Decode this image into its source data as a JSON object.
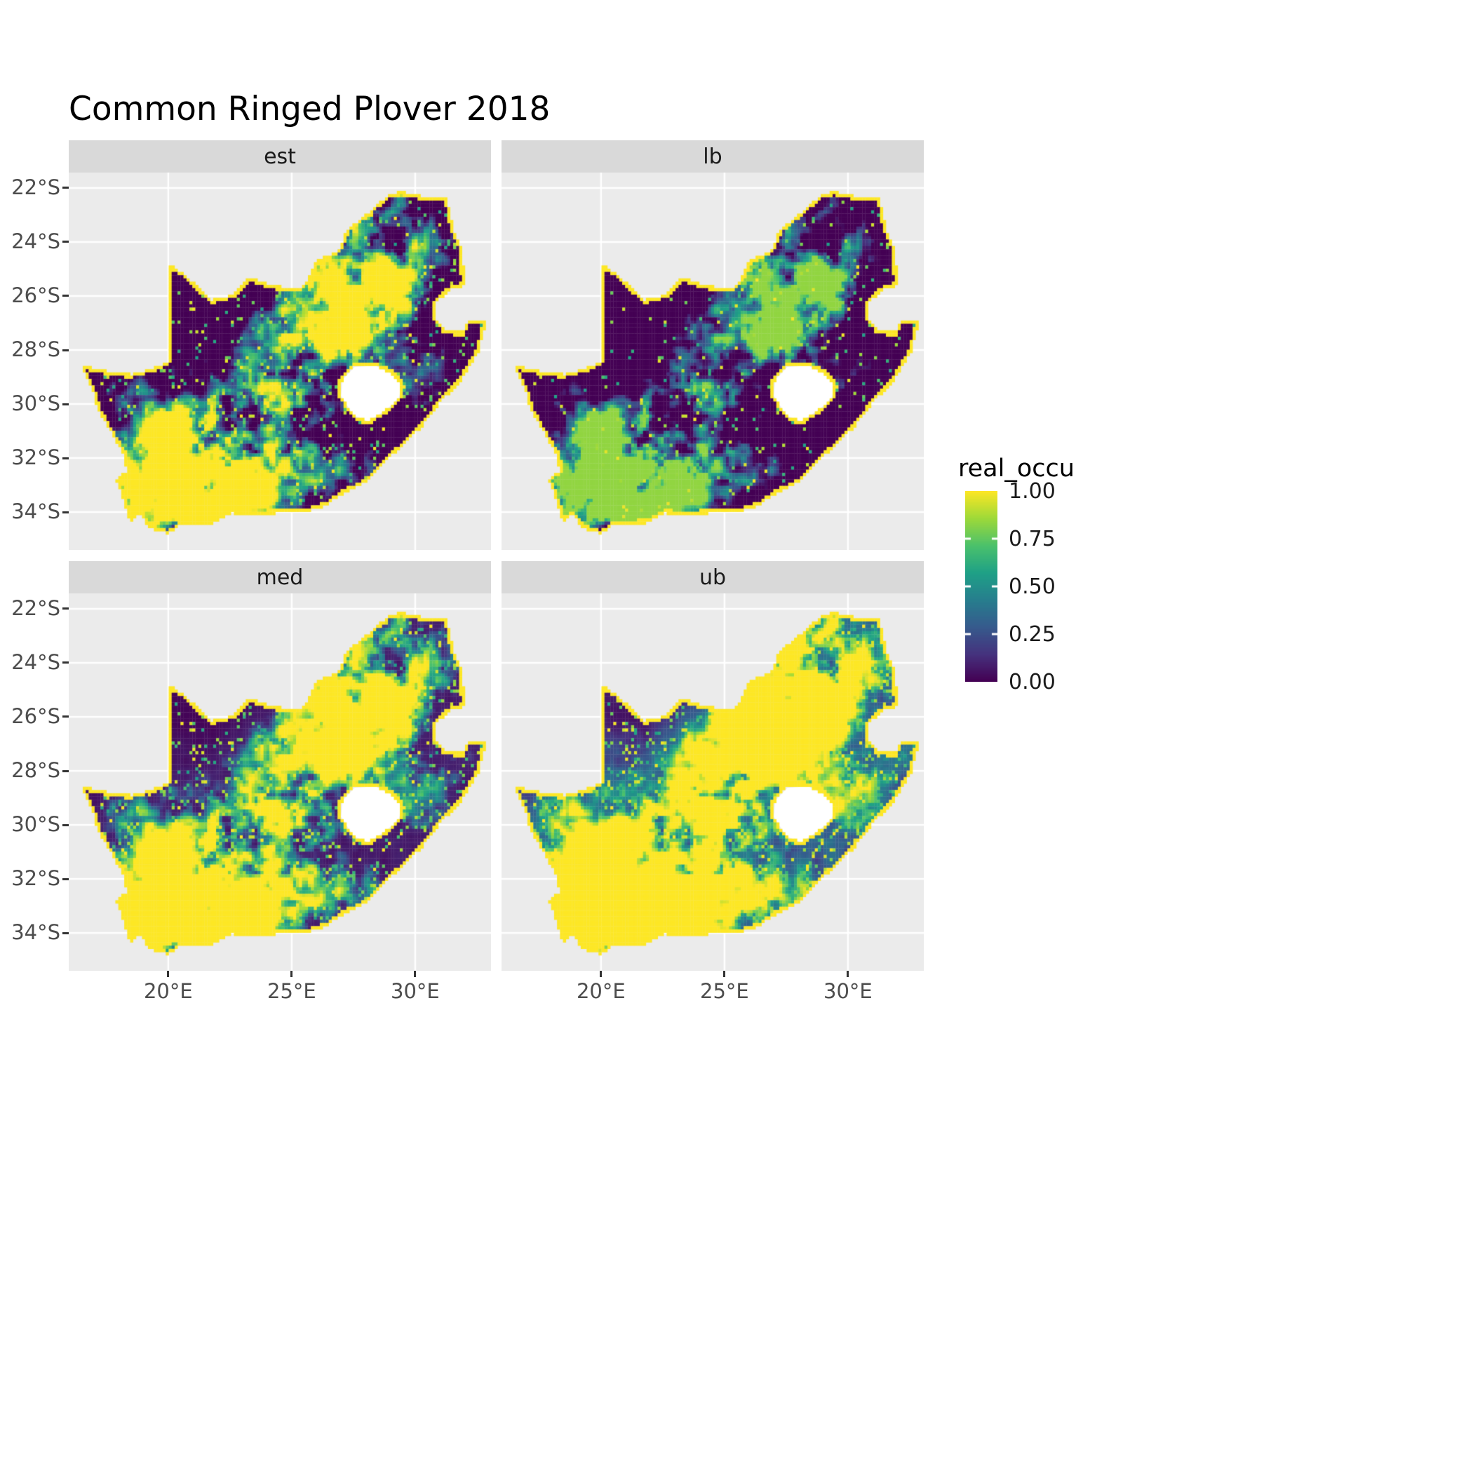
{
  "title": "Common Ringed Plover 2018",
  "facets": [
    {
      "label": "est"
    },
    {
      "label": "lb"
    },
    {
      "label": "med"
    },
    {
      "label": "ub"
    }
  ],
  "axes": {
    "x": {
      "labels": [
        "20°E",
        "25°E",
        "30°E"
      ],
      "values": [
        20,
        25,
        30
      ]
    },
    "y": {
      "labels": [
        "22°S",
        "24°S",
        "26°S",
        "28°S",
        "30°S",
        "32°S",
        "34°S"
      ],
      "values": [
        -22,
        -24,
        -26,
        -28,
        -30,
        -32,
        -34
      ]
    }
  },
  "legend": {
    "title": "real_occu",
    "labels": [
      "1.00",
      "0.75",
      "0.50",
      "0.25",
      "0.00"
    ],
    "values": [
      1,
      0.75,
      0.5,
      0.25,
      0
    ]
  },
  "colors": {
    "panel_bg": "#EBEBEB",
    "strip_bg": "#D9D9D9",
    "grid": "#FFFFFF",
    "tick_text": "#4D4D4D",
    "axis_tick": "#333333",
    "title_text": "#000000",
    "lesotho_hole": "#FFFFFF"
  },
  "chart_data": {
    "type": "heatmap",
    "subtype": "faceted_raster_occupancy_map",
    "region": "South Africa",
    "title": "Common Ringed Plover 2018",
    "variable": "real_occu",
    "value_range": [
      0,
      1
    ],
    "legend_breaks": [
      0,
      0.25,
      0.5,
      0.75,
      1
    ],
    "facets": [
      {
        "name": "est",
        "threshold": 0.5,
        "gain": 2.4,
        "speckle": 0.12,
        "floor": 0
      },
      {
        "name": "lb",
        "threshold": 0.62,
        "gain": 2.2,
        "speckle": 0.06,
        "floor": 0
      },
      {
        "name": "med",
        "threshold": 0.38,
        "gain": 2.4,
        "speckle": 0.2,
        "floor": 0.12
      },
      {
        "name": "ub",
        "threshold": 0.26,
        "gain": 2.6,
        "speckle": 0.32,
        "floor": 0.5
      }
    ],
    "extent": {
      "lon": [
        15.97,
        33.07
      ],
      "lat": [
        -35.4,
        -21.43
      ]
    },
    "viridis_stops": [
      [
        0,
        "#440154"
      ],
      [
        0.14,
        "#46327E"
      ],
      [
        0.29,
        "#365C8D"
      ],
      [
        0.43,
        "#277F8E"
      ],
      [
        0.57,
        "#1FA187"
      ],
      [
        0.71,
        "#4AC16D"
      ],
      [
        0.86,
        "#A0DA39"
      ],
      [
        1,
        "#FDE725"
      ]
    ],
    "geo": {
      "south_africa": [
        [
          16.45,
          -28.58
        ],
        [
          17.6,
          -28.78
        ],
        [
          18.5,
          -28.9
        ],
        [
          19.4,
          -28.68
        ],
        [
          19.98,
          -28.42
        ],
        [
          19.98,
          -24.77
        ],
        [
          20.8,
          -25.3
        ],
        [
          21.7,
          -26.15
        ],
        [
          22.65,
          -25.95
        ],
        [
          23.3,
          -25.3
        ],
        [
          24.2,
          -25.62
        ],
        [
          25.4,
          -25.72
        ],
        [
          25.62,
          -25.45
        ],
        [
          26.0,
          -24.7
        ],
        [
          26.9,
          -24.3
        ],
        [
          27.2,
          -23.6
        ],
        [
          28.0,
          -23.0
        ],
        [
          29.0,
          -22.2
        ],
        [
          29.45,
          -22.14
        ],
        [
          30.3,
          -22.3
        ],
        [
          31.3,
          -22.4
        ],
        [
          31.55,
          -23.5
        ],
        [
          31.9,
          -24.3
        ],
        [
          31.97,
          -25.0
        ],
        [
          32.0,
          -25.62
        ],
        [
          31.4,
          -25.76
        ],
        [
          30.8,
          -26.3
        ],
        [
          30.85,
          -26.82
        ],
        [
          31.1,
          -27.2
        ],
        [
          31.6,
          -27.32
        ],
        [
          31.97,
          -27.32
        ],
        [
          32.13,
          -26.86
        ],
        [
          32.89,
          -26.86
        ],
        [
          32.6,
          -28.0
        ],
        [
          32.2,
          -28.6
        ],
        [
          31.8,
          -29.2
        ],
        [
          31.05,
          -29.9
        ],
        [
          30.3,
          -30.8
        ],
        [
          29.5,
          -31.55
        ],
        [
          28.8,
          -32.1
        ],
        [
          28.0,
          -32.9
        ],
        [
          27.1,
          -33.3
        ],
        [
          26.4,
          -33.75
        ],
        [
          25.65,
          -33.98
        ],
        [
          25.0,
          -34.0
        ],
        [
          24.2,
          -34.06
        ],
        [
          23.4,
          -34.1
        ],
        [
          22.6,
          -34.05
        ],
        [
          21.8,
          -34.42
        ],
        [
          20.5,
          -34.46
        ],
        [
          20.0,
          -34.82
        ],
        [
          19.3,
          -34.6
        ],
        [
          18.8,
          -34.08
        ],
        [
          18.45,
          -34.35
        ],
        [
          18.3,
          -33.9
        ],
        [
          18.0,
          -33.1
        ],
        [
          17.85,
          -32.78
        ],
        [
          18.3,
          -32.5
        ],
        [
          18.25,
          -31.9
        ],
        [
          17.9,
          -31.4
        ],
        [
          17.15,
          -30.2
        ],
        [
          16.9,
          -29.4
        ],
        [
          16.45,
          -28.58
        ]
      ],
      "lesotho": [
        [
          27.0,
          -29.7
        ],
        [
          27.05,
          -29.1
        ],
        [
          27.55,
          -28.62
        ],
        [
          28.4,
          -28.58
        ],
        [
          29.1,
          -28.9
        ],
        [
          29.45,
          -29.3
        ],
        [
          29.35,
          -29.75
        ],
        [
          28.85,
          -30.2
        ],
        [
          28.1,
          -30.65
        ],
        [
          27.5,
          -30.42
        ],
        [
          27.0,
          -29.7
        ]
      ]
    },
    "render_params": {
      "cell_deg": 0.12,
      "noise_octaves": [
        [
          0.55,
          0.5
        ],
        [
          1.7,
          0.3
        ],
        [
          4.5,
          0.2
        ]
      ],
      "hotspots": [
        [
          26.8,
          -26.6,
          2.6,
          0.75
        ],
        [
          22.3,
          -31.3,
          2.8,
          0.85
        ],
        [
          19.3,
          -33.5,
          1.8,
          0.55
        ],
        [
          29.5,
          -24.8,
          2.0,
          0.3
        ]
      ],
      "coldspots": [
        [
          22.3,
          -26.0,
          2.6,
          0.45
        ]
      ],
      "base": 0.25
    }
  }
}
